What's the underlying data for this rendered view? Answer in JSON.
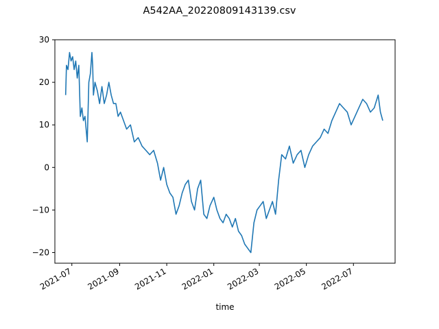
{
  "chart_data": {
    "type": "line",
    "title": "A542AA_20220809143139.csv",
    "xlabel": "time",
    "ylabel": "",
    "x_range": [
      "2021-06-09",
      "2022-08-24"
    ],
    "ylim": [
      -22.5,
      30
    ],
    "yticks": [
      30,
      20,
      10,
      0,
      -10,
      -20
    ],
    "xticks": [
      "2021-07",
      "2021-09",
      "2021-11",
      "2022-01",
      "2022-03",
      "2022-05",
      "2022-07"
    ],
    "line_color": "#1f77b4",
    "grid": false,
    "legend": "none",
    "series": [
      {
        "x": [
          "2021-06-23",
          "2021-06-24",
          "2021-06-26",
          "2021-06-28",
          "2021-06-30",
          "2021-07-02",
          "2021-07-04",
          "2021-07-06",
          "2021-07-08",
          "2021-07-10",
          "2021-07-12",
          "2021-07-14",
          "2021-07-16",
          "2021-07-18",
          "2021-07-21",
          "2021-07-23",
          "2021-07-25",
          "2021-07-27",
          "2021-07-28",
          "2021-07-29",
          "2021-07-31",
          "2021-08-03",
          "2021-08-06",
          "2021-08-09",
          "2021-08-12",
          "2021-08-15",
          "2021-08-18",
          "2021-08-21",
          "2021-08-24",
          "2021-08-27",
          "2021-08-30",
          "2021-09-02",
          "2021-09-06",
          "2021-09-10",
          "2021-09-15",
          "2021-09-20",
          "2021-09-25",
          "2021-09-30",
          "2021-10-05",
          "2021-10-10",
          "2021-10-15",
          "2021-10-20",
          "2021-10-24",
          "2021-10-28",
          "2021-11-01",
          "2021-11-05",
          "2021-11-09",
          "2021-11-13",
          "2021-11-17",
          "2021-11-21",
          "2021-11-25",
          "2021-11-29",
          "2021-12-03",
          "2021-12-07",
          "2021-12-11",
          "2021-12-15",
          "2021-12-19",
          "2021-12-23",
          "2021-12-27",
          "2022-01-01",
          "2022-01-05",
          "2022-01-09",
          "2022-01-13",
          "2022-01-17",
          "2022-01-21",
          "2022-01-25",
          "2022-01-29",
          "2022-02-02",
          "2022-02-06",
          "2022-02-10",
          "2022-02-14",
          "2022-02-18",
          "2022-02-22",
          "2022-02-26",
          "2022-03-02",
          "2022-03-06",
          "2022-03-10",
          "2022-03-14",
          "2022-03-18",
          "2022-03-22",
          "2022-03-26",
          "2022-03-30",
          "2022-04-04",
          "2022-04-09",
          "2022-04-14",
          "2022-04-19",
          "2022-04-24",
          "2022-04-29",
          "2022-05-04",
          "2022-05-09",
          "2022-05-14",
          "2022-05-19",
          "2022-05-24",
          "2022-05-29",
          "2022-06-03",
          "2022-06-08",
          "2022-06-13",
          "2022-06-18",
          "2022-06-23",
          "2022-06-28",
          "2022-07-03",
          "2022-07-08",
          "2022-07-13",
          "2022-07-18",
          "2022-07-23",
          "2022-07-28",
          "2022-08-02",
          "2022-08-05",
          "2022-08-08"
        ],
        "y": [
          17,
          24,
          23,
          27,
          25,
          26,
          23,
          25,
          21,
          24,
          12,
          14,
          11,
          12,
          6,
          20,
          22,
          27,
          24,
          17,
          20,
          18,
          15,
          19,
          15,
          17,
          20,
          17,
          15,
          15,
          12,
          13,
          11,
          9,
          10,
          6,
          7,
          5,
          4,
          3,
          4,
          1,
          -3,
          0,
          -4,
          -6,
          -7,
          -11,
          -9,
          -6,
          -4,
          -3,
          -8,
          -10,
          -5,
          -3,
          -11,
          -12,
          -9,
          -7,
          -10,
          -12,
          -13,
          -11,
          -12,
          -14,
          -12,
          -15,
          -16,
          -18,
          -19,
          -20,
          -13,
          -10,
          -9,
          -8,
          -12,
          -10,
          -8,
          -11,
          -3,
          3,
          2,
          5,
          1,
          3,
          4,
          0,
          3,
          5,
          6,
          7,
          9,
          8,
          11,
          13,
          15,
          14,
          13,
          10,
          12,
          14,
          16,
          15,
          13,
          14,
          17,
          13,
          11
        ]
      }
    ]
  }
}
